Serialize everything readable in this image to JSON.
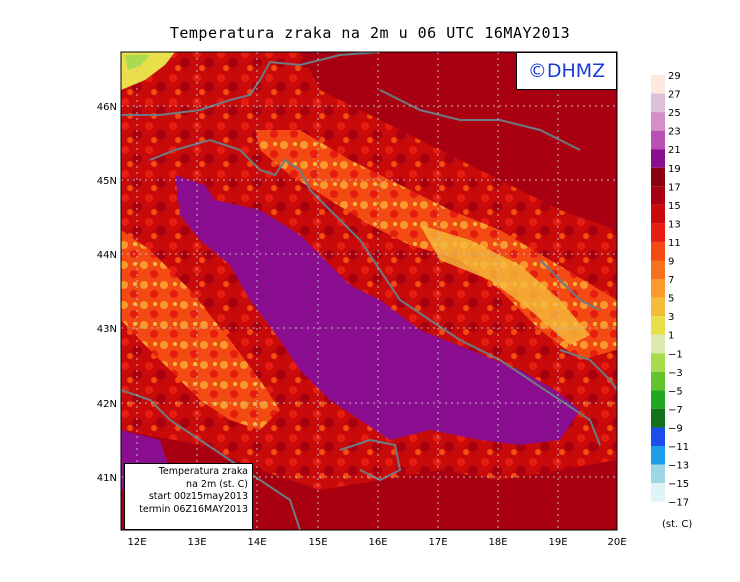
{
  "title": "Temperatura zraka na 2m u 06 UTC 16MAY2013",
  "logo_text": "©DHMZ",
  "info_box": {
    "line1": "Temperatura zraka",
    "line2": "na 2m (st. C)",
    "line3": "start 00z15may2013",
    "line4": "termin 06Z16MAY2013"
  },
  "x_ticks": [
    "12E",
    "13E",
    "14E",
    "15E",
    "16E",
    "17E",
    "18E",
    "19E",
    "20E"
  ],
  "y_ticks": [
    "41N",
    "42N",
    "43N",
    "44N",
    "45N",
    "46N"
  ],
  "colorbar": {
    "unit": "(st. C)",
    "labels": [
      "29",
      "27",
      "25",
      "23",
      "21",
      "19",
      "17",
      "15",
      "13",
      "11",
      "9",
      "7",
      "5",
      "3",
      "1",
      "−1",
      "−3",
      "−5",
      "−7",
      "−9",
      "−11",
      "−13",
      "−15",
      "−17"
    ],
    "colors": [
      "#fdeadf",
      "#dcc0d8",
      "#d58fc8",
      "#b850b5",
      "#8a0e8f",
      "#8b0011",
      "#a80010",
      "#c80a0b",
      "#e61d10",
      "#f24a12",
      "#f7721c",
      "#f99a2e",
      "#f5bc3b",
      "#e8df4a",
      "#dbeab0",
      "#a9dc4c",
      "#63c32f",
      "#1fa81f",
      "#12711a",
      "#1d4de8",
      "#1d9ce8",
      "#9ed6e3",
      "#dff4f7"
    ],
    "legend": "right"
  },
  "colors": {
    "sea_purple": "#8a0e8f",
    "land_dark": "#a80010",
    "land_mid": "#c80a0b",
    "land_orange": "#f7721c",
    "coast": "#6f7a82"
  }
}
